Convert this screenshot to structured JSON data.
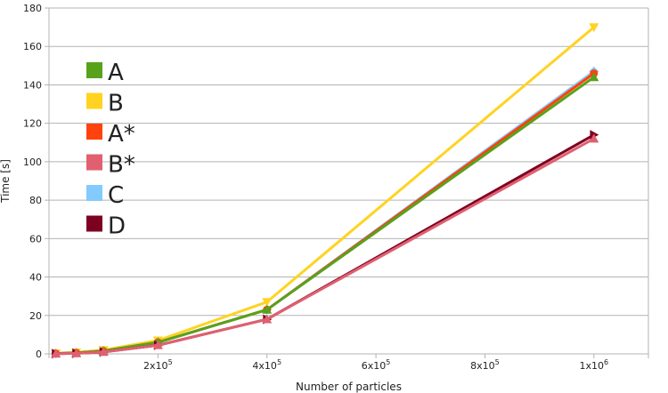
{
  "chart_data": {
    "type": "line",
    "title": "",
    "xlabel": "Number of particles",
    "ylabel": "Time [s]",
    "xlim": [
      0,
      1100000
    ],
    "ylim": [
      0,
      180
    ],
    "yticks": [
      0,
      20,
      40,
      60,
      80,
      100,
      120,
      140,
      160,
      180
    ],
    "xticks": [
      {
        "value": 200000,
        "base": "2x10",
        "exp": "5"
      },
      {
        "value": 400000,
        "base": "4x10",
        "exp": "5"
      },
      {
        "value": 600000,
        "base": "6x10",
        "exp": "5"
      },
      {
        "value": 800000,
        "base": "8x10",
        "exp": "5"
      },
      {
        "value": 1000000,
        "base": "1x10",
        "exp": "6"
      }
    ],
    "grid": true,
    "legend_position": "top-left",
    "x": [
      12500,
      50000,
      100000,
      200000,
      400000,
      1000000
    ],
    "series": [
      {
        "name": "A",
        "color": "#58a21b",
        "marker": "triangle-up",
        "values": [
          0.2,
          0.5,
          1.5,
          6,
          23,
          144
        ]
      },
      {
        "name": "B",
        "color": "#ffd320",
        "marker": "triangle-down",
        "values": [
          0.3,
          0.8,
          2,
          7,
          27,
          170
        ]
      },
      {
        "name": "A*",
        "color": "#ff420e",
        "marker": "circle",
        "values": [
          0.2,
          0.5,
          1.5,
          6,
          23,
          146
        ]
      },
      {
        "name": "B*",
        "color": "#e06070",
        "marker": "triangle-up",
        "values": [
          0.1,
          0.3,
          1,
          4.5,
          18,
          112
        ]
      },
      {
        "name": "C",
        "color": "#83caff",
        "marker": "diamond",
        "values": [
          0.2,
          0.5,
          1.5,
          6,
          23,
          147
        ]
      },
      {
        "name": "D",
        "color": "#7e0021",
        "marker": "triangle-right",
        "values": [
          0.1,
          0.3,
          1,
          4.5,
          18,
          114
        ]
      }
    ]
  }
}
